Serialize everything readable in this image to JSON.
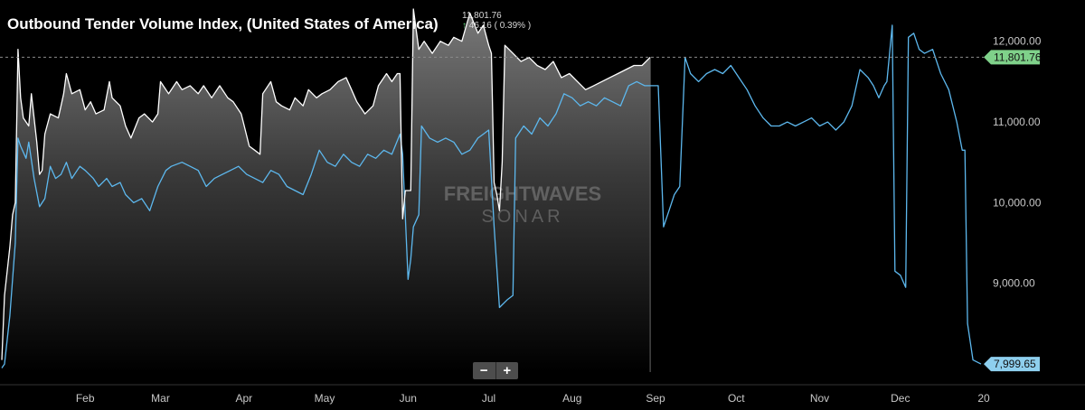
{
  "title": "Outbound Tender Volume Index, (United States of America)",
  "last_info": {
    "value": "11,801.76",
    "arrow": "↑",
    "change": "46.16 ( 0.39% )"
  },
  "zoom": {
    "minus": "−",
    "plus": "+"
  },
  "watermark": {
    "line1": "FREIGHTWAVES",
    "line2": "SONAR"
  },
  "colors": {
    "background": "#000000",
    "current": "#ffffff",
    "prior": "#5db8ee",
    "current_label_bg": "#7fd18a",
    "prior_label_bg": "#8ecfee",
    "axis_text": "#c8c8c8"
  },
  "chart_data": {
    "type": "area",
    "x_ticks": [
      "Feb",
      "Mar",
      "Apr",
      "May",
      "Jun",
      "Jul",
      "Aug",
      "Sep",
      "Oct",
      "Nov",
      "Dec",
      "20"
    ],
    "y_ticks": [
      "12,000.00",
      "11,000.00",
      "10,000.00",
      "9,000.00"
    ],
    "ylim": [
      7900,
      12400
    ],
    "ref_line": 11801.76,
    "last_labels": [
      "11,801.76",
      "7,999.65"
    ],
    "series": [
      {
        "style": "area",
        "values": [
          [
            "Jan 1",
            8050
          ],
          [
            "Jan 2",
            8850
          ],
          [
            "Jan 4",
            9450
          ],
          [
            "Jan 5",
            9850
          ],
          [
            "Jan 6",
            10000
          ],
          [
            "Jan 7",
            11900
          ],
          [
            "Jan 8",
            11300
          ],
          [
            "Jan 9",
            11050
          ],
          [
            "Jan 11",
            10950
          ],
          [
            "Jan 12",
            11350
          ],
          [
            "Jan 14",
            10750
          ],
          [
            "Jan 15",
            10350
          ],
          [
            "Jan 16",
            10400
          ],
          [
            "Jan 17",
            10850
          ],
          [
            "Jan 19",
            11100
          ],
          [
            "Jan 22",
            11050
          ],
          [
            "Jan 24",
            11350
          ],
          [
            "Jan 25",
            11600
          ],
          [
            "Jan 27",
            11350
          ],
          [
            "Jan 30",
            11400
          ],
          [
            "Feb 1",
            11150
          ],
          [
            "Feb 3",
            11250
          ],
          [
            "Feb 5",
            11100
          ],
          [
            "Feb 8",
            11150
          ],
          [
            "Feb 10",
            11500
          ],
          [
            "Feb 11",
            11300
          ],
          [
            "Feb 14",
            11200
          ],
          [
            "Feb 16",
            10950
          ],
          [
            "Feb 18",
            10800
          ],
          [
            "Feb 21",
            11050
          ],
          [
            "Feb 23",
            11100
          ],
          [
            "Feb 26",
            11000
          ],
          [
            "Feb 28",
            11100
          ],
          [
            "Mar 1",
            11500
          ],
          [
            "Mar 4",
            11350
          ],
          [
            "Mar 7",
            11500
          ],
          [
            "Mar 9",
            11400
          ],
          [
            "Mar 12",
            11450
          ],
          [
            "Mar 15",
            11350
          ],
          [
            "Mar 17",
            11450
          ],
          [
            "Mar 20",
            11300
          ],
          [
            "Mar 23",
            11450
          ],
          [
            "Mar 26",
            11300
          ],
          [
            "Mar 28",
            11250
          ],
          [
            "Mar 31",
            11100
          ],
          [
            "Apr 3",
            10700
          ],
          [
            "Apr 5",
            10650
          ],
          [
            "Apr 7",
            10600
          ],
          [
            "Apr 8",
            11350
          ],
          [
            "Apr 11",
            11500
          ],
          [
            "Apr 13",
            11250
          ],
          [
            "Apr 15",
            11200
          ],
          [
            "Apr 18",
            11150
          ],
          [
            "Apr 20",
            11300
          ],
          [
            "Apr 23",
            11200
          ],
          [
            "Apr 25",
            11400
          ],
          [
            "Apr 28",
            11300
          ],
          [
            "Apr 30",
            11350
          ],
          [
            "May 3",
            11400
          ],
          [
            "May 6",
            11500
          ],
          [
            "May 9",
            11550
          ],
          [
            "May 11",
            11400
          ],
          [
            "May 13",
            11250
          ],
          [
            "May 16",
            11100
          ],
          [
            "May 19",
            11200
          ],
          [
            "May 21",
            11450
          ],
          [
            "May 24",
            11600
          ],
          [
            "May 26",
            11500
          ],
          [
            "May 28",
            11600
          ],
          [
            "May 29",
            11600
          ],
          [
            "May 30",
            9800
          ],
          [
            "May 31",
            10150
          ],
          [
            "Jun 2",
            10150
          ],
          [
            "Jun 3",
            12400
          ],
          [
            "Jun 5",
            11900
          ],
          [
            "Jun 7",
            12000
          ],
          [
            "Jun 10",
            11850
          ],
          [
            "Jun 13",
            12000
          ],
          [
            "Jun 16",
            11950
          ],
          [
            "Jun 18",
            12050
          ],
          [
            "Jun 21",
            12000
          ],
          [
            "Jun 24",
            12350
          ],
          [
            "Jun 27",
            12100
          ],
          [
            "Jun 29",
            12200
          ],
          [
            "Jul 1",
            11950
          ],
          [
            "Jul 2",
            11850
          ],
          [
            "Jul 3",
            10250
          ],
          [
            "Jul 4",
            10100
          ],
          [
            "Jul 5",
            9900
          ],
          [
            "Jul 6",
            10500
          ],
          [
            "Jul 7",
            11950
          ],
          [
            "Jul 10",
            11850
          ],
          [
            "Jul 13",
            11750
          ],
          [
            "Jul 16",
            11800
          ],
          [
            "Jul 19",
            11700
          ],
          [
            "Jul 22",
            11650
          ],
          [
            "Jul 25",
            11750
          ],
          [
            "Jul 28",
            11550
          ],
          [
            "Jul 31",
            11600
          ],
          [
            "Aug 3",
            11500
          ],
          [
            "Aug 6",
            11400
          ],
          [
            "Aug 9",
            11450
          ],
          [
            "Aug 12",
            11500
          ],
          [
            "Aug 15",
            11550
          ],
          [
            "Aug 18",
            11600
          ],
          [
            "Aug 21",
            11650
          ],
          [
            "Aug 24",
            11700
          ],
          [
            "Aug 27",
            11700
          ],
          [
            "Aug 30",
            11801.76
          ]
        ]
      },
      {
        "style": "line",
        "values": [
          [
            "Jan 1",
            7950
          ],
          [
            "Jan 2",
            8000
          ],
          [
            "Jan 4",
            8600
          ],
          [
            "Jan 6",
            9500
          ],
          [
            "Jan 7",
            10800
          ],
          [
            "Jan 8",
            10700
          ],
          [
            "Jan 10",
            10550
          ],
          [
            "Jan 11",
            10750
          ],
          [
            "Jan 13",
            10300
          ],
          [
            "Jan 15",
            9950
          ],
          [
            "Jan 17",
            10050
          ],
          [
            "Jan 19",
            10450
          ],
          [
            "Jan 21",
            10300
          ],
          [
            "Jan 23",
            10350
          ],
          [
            "Jan 25",
            10500
          ],
          [
            "Jan 27",
            10300
          ],
          [
            "Jan 30",
            10450
          ],
          [
            "Feb 1",
            10400
          ],
          [
            "Feb 4",
            10300
          ],
          [
            "Feb 6",
            10200
          ],
          [
            "Feb 9",
            10300
          ],
          [
            "Feb 11",
            10200
          ],
          [
            "Feb 14",
            10250
          ],
          [
            "Feb 16",
            10100
          ],
          [
            "Feb 19",
            10000
          ],
          [
            "Feb 22",
            10050
          ],
          [
            "Feb 25",
            9900
          ],
          [
            "Feb 28",
            10200
          ],
          [
            "Mar 3",
            10400
          ],
          [
            "Mar 5",
            10450
          ],
          [
            "Mar 9",
            10500
          ],
          [
            "Mar 12",
            10450
          ],
          [
            "Mar 15",
            10400
          ],
          [
            "Mar 18",
            10200
          ],
          [
            "Mar 21",
            10300
          ],
          [
            "Mar 24",
            10350
          ],
          [
            "Mar 27",
            10400
          ],
          [
            "Mar 30",
            10450
          ],
          [
            "Apr 2",
            10350
          ],
          [
            "Apr 5",
            10300
          ],
          [
            "Apr 8",
            10250
          ],
          [
            "Apr 11",
            10400
          ],
          [
            "Apr 14",
            10350
          ],
          [
            "Apr 17",
            10200
          ],
          [
            "Apr 20",
            10150
          ],
          [
            "Apr 23",
            10100
          ],
          [
            "Apr 26",
            10350
          ],
          [
            "Apr 29",
            10650
          ],
          [
            "May 2",
            10500
          ],
          [
            "May 5",
            10450
          ],
          [
            "May 8",
            10600
          ],
          [
            "May 11",
            10500
          ],
          [
            "May 14",
            10450
          ],
          [
            "May 17",
            10600
          ],
          [
            "May 20",
            10550
          ],
          [
            "May 23",
            10650
          ],
          [
            "May 26",
            10600
          ],
          [
            "May 29",
            10850
          ],
          [
            "May 30",
            10600
          ],
          [
            "Jun 1",
            9050
          ],
          [
            "Jun 2",
            9300
          ],
          [
            "Jun 3",
            9700
          ],
          [
            "Jun 5",
            9850
          ],
          [
            "Jun 6",
            10950
          ],
          [
            "Jun 9",
            10800
          ],
          [
            "Jun 12",
            10750
          ],
          [
            "Jun 15",
            10800
          ],
          [
            "Jun 18",
            10750
          ],
          [
            "Jun 21",
            10600
          ],
          [
            "Jun 24",
            10650
          ],
          [
            "Jun 27",
            10800
          ],
          [
            "Jun 29",
            10850
          ],
          [
            "Jul 1",
            10900
          ],
          [
            "Jul 3",
            9700
          ],
          [
            "Jul 5",
            8700
          ],
          [
            "Jul 8",
            8800
          ],
          [
            "Jul 10",
            8850
          ],
          [
            "Jul 11",
            10800
          ],
          [
            "Jul 14",
            10950
          ],
          [
            "Jul 17",
            10850
          ],
          [
            "Jul 20",
            11050
          ],
          [
            "Jul 23",
            10950
          ],
          [
            "Jul 26",
            11100
          ],
          [
            "Jul 29",
            11350
          ],
          [
            "Aug 1",
            11300
          ],
          [
            "Aug 4",
            11200
          ],
          [
            "Aug 7",
            11250
          ],
          [
            "Aug 10",
            11200
          ],
          [
            "Aug 13",
            11300
          ],
          [
            "Aug 16",
            11250
          ],
          [
            "Aug 19",
            11200
          ],
          [
            "Aug 22",
            11450
          ],
          [
            "Aug 25",
            11500
          ],
          [
            "Aug 28",
            11450
          ],
          [
            "Aug 31",
            11450
          ],
          [
            "Sep 2",
            11450
          ],
          [
            "Sep 4",
            9700
          ],
          [
            "Sep 6",
            9900
          ],
          [
            "Sep 8",
            10100
          ],
          [
            "Sep 10",
            10200
          ],
          [
            "Sep 12",
            11800
          ],
          [
            "Sep 14",
            11600
          ],
          [
            "Sep 17",
            11500
          ],
          [
            "Sep 20",
            11600
          ],
          [
            "Sep 23",
            11650
          ],
          [
            "Sep 26",
            11600
          ],
          [
            "Sep 29",
            11700
          ],
          [
            "Oct 2",
            11550
          ],
          [
            "Oct 5",
            11400
          ],
          [
            "Oct 8",
            11200
          ],
          [
            "Oct 11",
            11050
          ],
          [
            "Oct 14",
            10950
          ],
          [
            "Oct 17",
            10950
          ],
          [
            "Oct 20",
            11000
          ],
          [
            "Oct 23",
            10950
          ],
          [
            "Oct 26",
            11000
          ],
          [
            "Oct 29",
            11050
          ],
          [
            "Nov 1",
            10950
          ],
          [
            "Nov 4",
            11000
          ],
          [
            "Nov 7",
            10900
          ],
          [
            "Nov 10",
            11000
          ],
          [
            "Nov 13",
            11200
          ],
          [
            "Nov 16",
            11650
          ],
          [
            "Nov 19",
            11550
          ],
          [
            "Nov 21",
            11450
          ],
          [
            "Nov 23",
            11300
          ],
          [
            "Nov 25",
            11450
          ],
          [
            "Nov 26",
            11500
          ],
          [
            "Nov 28",
            12200
          ],
          [
            "Nov 29",
            9150
          ],
          [
            "Dec 1",
            9100
          ],
          [
            "Dec 3",
            8950
          ],
          [
            "Dec 4",
            12050
          ],
          [
            "Dec 6",
            12100
          ],
          [
            "Dec 8",
            11900
          ],
          [
            "Dec 10",
            11850
          ],
          [
            "Dec 13",
            11900
          ],
          [
            "Dec 16",
            11600
          ],
          [
            "Dec 19",
            11400
          ],
          [
            "Dec 22",
            11000
          ],
          [
            "Dec 24",
            10650
          ],
          [
            "Dec 25",
            10650
          ],
          [
            "Dec 26",
            8500
          ],
          [
            "Dec 28",
            8050
          ],
          [
            "Dec 31",
            7999.65
          ]
        ]
      }
    ]
  }
}
